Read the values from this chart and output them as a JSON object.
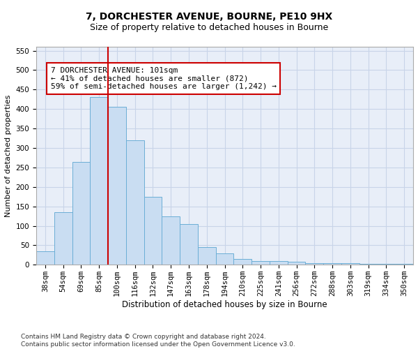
{
  "title1": "7, DORCHESTER AVENUE, BOURNE, PE10 9HX",
  "title2": "Size of property relative to detached houses in Bourne",
  "xlabel": "Distribution of detached houses by size in Bourne",
  "ylabel": "Number of detached properties",
  "categories": [
    "38sqm",
    "54sqm",
    "69sqm",
    "85sqm",
    "100sqm",
    "116sqm",
    "132sqm",
    "147sqm",
    "163sqm",
    "178sqm",
    "194sqm",
    "210sqm",
    "225sqm",
    "241sqm",
    "256sqm",
    "272sqm",
    "288sqm",
    "303sqm",
    "319sqm",
    "334sqm",
    "350sqm"
  ],
  "values": [
    35,
    135,
    265,
    430,
    405,
    320,
    175,
    125,
    105,
    45,
    30,
    15,
    10,
    10,
    8,
    5,
    4,
    4,
    3,
    3,
    3
  ],
  "bar_color": "#c9ddf2",
  "bar_edge_color": "#6baed6",
  "vline_color": "#cc0000",
  "annotation_text": "7 DORCHESTER AVENUE: 101sqm\n← 41% of detached houses are smaller (872)\n59% of semi-detached houses are larger (1,242) →",
  "annotation_box_color": "#ffffff",
  "annotation_box_edge_color": "#cc0000",
  "ylim": [
    0,
    560
  ],
  "yticks": [
    0,
    50,
    100,
    150,
    200,
    250,
    300,
    350,
    400,
    450,
    500,
    550
  ],
  "grid_color": "#c8d4e8",
  "background_color": "#e8eef8",
  "footer": "Contains HM Land Registry data © Crown copyright and database right 2024.\nContains public sector information licensed under the Open Government Licence v3.0.",
  "title1_fontsize": 10,
  "title2_fontsize": 9,
  "xlabel_fontsize": 8.5,
  "ylabel_fontsize": 8,
  "tick_fontsize": 7.5,
  "annotation_fontsize": 8,
  "footer_fontsize": 6.5
}
